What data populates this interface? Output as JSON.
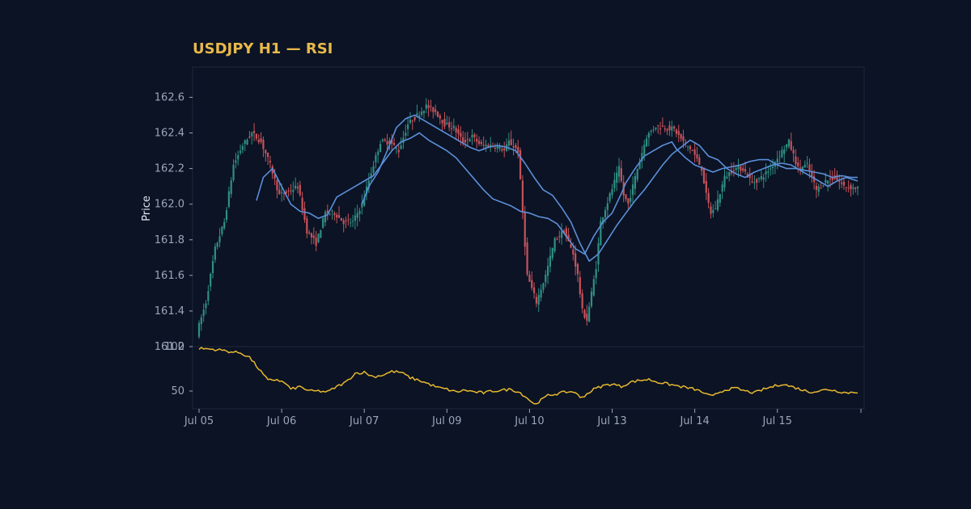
{
  "colors": {
    "background": "#0b1324",
    "title": "#e8b84a",
    "up_candle": "#2f8f83",
    "down_candle": "#c6525a",
    "moving_average": "#5b8fd9",
    "rsi_line": "#e8b830",
    "panel_border": "#1e2a3c",
    "tick_text": "#9aa6b8"
  },
  "chart_data": {
    "type": "candlestick",
    "title": "USDJPY H1 — RSI",
    "price_panel": {
      "ylabel": "Price",
      "ylim": [
        161.2,
        162.77
      ],
      "yticks": [
        "161.2",
        "161.4",
        "161.6",
        "161.8",
        "162.0",
        "162.2",
        "162.4",
        "162.6"
      ],
      "ytick_values": [
        161.2,
        161.4,
        161.6,
        161.8,
        162.0,
        162.2,
        162.4,
        162.6
      ],
      "ohlc_knots": [
        [
          0,
          161.27
        ],
        [
          1,
          161.32
        ],
        [
          4,
          161.45
        ],
        [
          8,
          161.75
        ],
        [
          12,
          161.9
        ],
        [
          16,
          162.22
        ],
        [
          20,
          162.33
        ],
        [
          24,
          162.4
        ],
        [
          28,
          162.35
        ],
        [
          32,
          162.22
        ],
        [
          36,
          162.05
        ],
        [
          40,
          162.07
        ],
        [
          44,
          162.1
        ],
        [
          48,
          161.85
        ],
        [
          52,
          161.78
        ],
        [
          56,
          161.95
        ],
        [
          60,
          161.95
        ],
        [
          64,
          161.9
        ],
        [
          68,
          161.9
        ],
        [
          72,
          162.0
        ],
        [
          76,
          162.18
        ],
        [
          80,
          162.35
        ],
        [
          84,
          162.35
        ],
        [
          88,
          162.3
        ],
        [
          92,
          162.45
        ],
        [
          96,
          162.5
        ],
        [
          100,
          162.55
        ],
        [
          104,
          162.52
        ],
        [
          108,
          162.45
        ],
        [
          112,
          162.43
        ],
        [
          116,
          162.35
        ],
        [
          120,
          162.38
        ],
        [
          124,
          162.33
        ],
        [
          128,
          162.33
        ],
        [
          132,
          162.32
        ],
        [
          134,
          162.3
        ],
        [
          136,
          162.35
        ],
        [
          140,
          162.3
        ],
        [
          144,
          161.6
        ],
        [
          148,
          161.45
        ],
        [
          152,
          161.6
        ],
        [
          156,
          161.8
        ],
        [
          160,
          161.85
        ],
        [
          164,
          161.72
        ],
        [
          166,
          161.6
        ],
        [
          168,
          161.4
        ],
        [
          170,
          161.35
        ],
        [
          174,
          161.65
        ],
        [
          176,
          161.9
        ],
        [
          180,
          162.05
        ],
        [
          184,
          162.2
        ],
        [
          186,
          162.05
        ],
        [
          188,
          162.0
        ],
        [
          190,
          162.1
        ],
        [
          192,
          162.2
        ],
        [
          196,
          162.38
        ],
        [
          200,
          162.44
        ],
        [
          204,
          162.43
        ],
        [
          208,
          162.42
        ],
        [
          212,
          162.35
        ],
        [
          216,
          162.3
        ],
        [
          220,
          162.2
        ],
        [
          222,
          162.05
        ],
        [
          224,
          161.95
        ],
        [
          226,
          161.98
        ],
        [
          230,
          162.15
        ],
        [
          234,
          162.2
        ],
        [
          238,
          162.2
        ],
        [
          242,
          162.12
        ],
        [
          246,
          162.15
        ],
        [
          250,
          162.2
        ],
        [
          254,
          162.28
        ],
        [
          258,
          162.35
        ],
        [
          262,
          162.2
        ],
        [
          266,
          162.22
        ],
        [
          270,
          162.08
        ],
        [
          274,
          162.13
        ],
        [
          278,
          162.15
        ],
        [
          282,
          162.1
        ],
        [
          287,
          162.09
        ]
      ],
      "moving_averages": [
        {
          "knots": [
            [
              25,
              162.02
            ],
            [
              28,
              162.15
            ],
            [
              32,
              162.2
            ],
            [
              36,
              162.1
            ],
            [
              40,
              162.0
            ],
            [
              44,
              161.96
            ],
            [
              48,
              161.95
            ],
            [
              52,
              161.92
            ],
            [
              56,
              161.94
            ],
            [
              60,
              162.04
            ],
            [
              64,
              162.07
            ],
            [
              68,
              162.1
            ],
            [
              72,
              162.13
            ],
            [
              76,
              162.16
            ],
            [
              80,
              162.23
            ],
            [
              84,
              162.3
            ],
            [
              88,
              162.35
            ],
            [
              92,
              162.37
            ],
            [
              96,
              162.4
            ],
            [
              100,
              162.36
            ],
            [
              104,
              162.33
            ],
            [
              108,
              162.3
            ],
            [
              112,
              162.26
            ],
            [
              116,
              162.2
            ],
            [
              120,
              162.14
            ],
            [
              124,
              162.08
            ],
            [
              128,
              162.03
            ],
            [
              132,
              162.01
            ],
            [
              136,
              161.99
            ],
            [
              140,
              161.96
            ],
            [
              144,
              161.95
            ],
            [
              148,
              161.93
            ],
            [
              152,
              161.92
            ],
            [
              156,
              161.89
            ],
            [
              160,
              161.82
            ],
            [
              164,
              161.75
            ],
            [
              168,
              161.72
            ],
            [
              172,
              161.82
            ],
            [
              176,
              161.9
            ],
            [
              180,
              161.95
            ],
            [
              184,
              162.06
            ],
            [
              186,
              162.12
            ],
            [
              190,
              162.2
            ],
            [
              194,
              162.27
            ],
            [
              198,
              162.3
            ],
            [
              202,
              162.33
            ],
            [
              206,
              162.35
            ],
            [
              208,
              162.31
            ],
            [
              212,
              162.26
            ],
            [
              216,
              162.22
            ],
            [
              220,
              162.2
            ],
            [
              224,
              162.18
            ],
            [
              228,
              162.2
            ],
            [
              232,
              162.21
            ],
            [
              236,
              162.22
            ],
            [
              240,
              162.24
            ],
            [
              244,
              162.25
            ],
            [
              248,
              162.25
            ],
            [
              252,
              162.22
            ],
            [
              256,
              162.2
            ],
            [
              260,
              162.2
            ],
            [
              264,
              162.19
            ],
            [
              268,
              162.18
            ],
            [
              272,
              162.17
            ],
            [
              276,
              162.15
            ],
            [
              280,
              162.16
            ],
            [
              284,
              162.15
            ],
            [
              287,
              162.15
            ]
          ]
        },
        {
          "knots": [
            [
              71,
              162.0
            ],
            [
              74,
              162.1
            ],
            [
              78,
              162.18
            ],
            [
              82,
              162.3
            ],
            [
              86,
              162.43
            ],
            [
              90,
              162.48
            ],
            [
              94,
              162.5
            ],
            [
              98,
              162.47
            ],
            [
              102,
              162.44
            ],
            [
              106,
              162.41
            ],
            [
              110,
              162.38
            ],
            [
              114,
              162.35
            ],
            [
              118,
              162.32
            ],
            [
              122,
              162.3
            ],
            [
              126,
              162.32
            ],
            [
              130,
              162.33
            ],
            [
              134,
              162.32
            ],
            [
              138,
              162.3
            ],
            [
              142,
              162.23
            ],
            [
              146,
              162.15
            ],
            [
              150,
              162.08
            ],
            [
              154,
              162.05
            ],
            [
              158,
              161.98
            ],
            [
              162,
              161.9
            ],
            [
              166,
              161.78
            ],
            [
              170,
              161.68
            ],
            [
              174,
              161.72
            ],
            [
              178,
              161.8
            ],
            [
              182,
              161.88
            ],
            [
              186,
              161.95
            ],
            [
              190,
              162.02
            ],
            [
              194,
              162.08
            ],
            [
              198,
              162.15
            ],
            [
              202,
              162.22
            ],
            [
              206,
              162.28
            ],
            [
              210,
              162.32
            ],
            [
              214,
              162.36
            ],
            [
              218,
              162.33
            ],
            [
              222,
              162.27
            ],
            [
              226,
              162.25
            ],
            [
              230,
              162.2
            ],
            [
              234,
              162.17
            ],
            [
              238,
              162.15
            ],
            [
              242,
              162.18
            ],
            [
              246,
              162.2
            ],
            [
              250,
              162.22
            ],
            [
              254,
              162.23
            ],
            [
              258,
              162.22
            ],
            [
              262,
              162.19
            ],
            [
              266,
              162.16
            ],
            [
              270,
              162.13
            ],
            [
              274,
              162.1
            ],
            [
              278,
              162.13
            ],
            [
              282,
              162.15
            ],
            [
              287,
              162.13
            ]
          ]
        }
      ]
    },
    "rsi_panel": {
      "ylim": [
        30,
        100
      ],
      "yticks": [
        "50",
        "100"
      ],
      "ytick_values": [
        50,
        100
      ],
      "values_knots": [
        [
          0,
          98
        ],
        [
          6,
          97
        ],
        [
          10,
          96
        ],
        [
          14,
          94
        ],
        [
          18,
          93
        ],
        [
          22,
          88
        ],
        [
          26,
          75
        ],
        [
          30,
          62
        ],
        [
          34,
          63
        ],
        [
          38,
          58
        ],
        [
          40,
          52
        ],
        [
          44,
          55
        ],
        [
          48,
          50
        ],
        [
          52,
          50
        ],
        [
          56,
          49
        ],
        [
          60,
          55
        ],
        [
          64,
          60
        ],
        [
          68,
          70
        ],
        [
          72,
          71
        ],
        [
          76,
          66
        ],
        [
          80,
          68
        ],
        [
          84,
          72
        ],
        [
          88,
          71
        ],
        [
          92,
          65
        ],
        [
          96,
          62
        ],
        [
          100,
          58
        ],
        [
          104,
          54
        ],
        [
          108,
          52
        ],
        [
          112,
          49
        ],
        [
          116,
          51
        ],
        [
          120,
          49
        ],
        [
          124,
          48
        ],
        [
          128,
          50
        ],
        [
          132,
          51
        ],
        [
          136,
          52
        ],
        [
          140,
          48
        ],
        [
          144,
          40
        ],
        [
          146,
          35
        ],
        [
          148,
          38
        ],
        [
          152,
          45
        ],
        [
          156,
          47
        ],
        [
          160,
          49
        ],
        [
          164,
          49
        ],
        [
          166,
          42
        ],
        [
          168,
          45
        ],
        [
          172,
          52
        ],
        [
          176,
          56
        ],
        [
          180,
          58
        ],
        [
          184,
          55
        ],
        [
          188,
          60
        ],
        [
          192,
          62
        ],
        [
          196,
          63
        ],
        [
          200,
          60
        ],
        [
          204,
          58
        ],
        [
          208,
          56
        ],
        [
          212,
          54
        ],
        [
          216,
          52
        ],
        [
          220,
          48
        ],
        [
          222,
          45
        ],
        [
          224,
          44
        ],
        [
          226,
          48
        ],
        [
          230,
          52
        ],
        [
          234,
          53
        ],
        [
          238,
          50
        ],
        [
          242,
          48
        ],
        [
          246,
          52
        ],
        [
          250,
          55
        ],
        [
          254,
          58
        ],
        [
          258,
          55
        ],
        [
          262,
          52
        ],
        [
          266,
          49
        ],
        [
          270,
          50
        ],
        [
          274,
          52
        ],
        [
          278,
          50
        ],
        [
          282,
          48
        ],
        [
          287,
          49
        ]
      ]
    },
    "x_axis": {
      "n_bars": 288,
      "tick_labels": [
        "Jul 05",
        "Jul 06",
        "Jul 07",
        "Jul 09",
        "Jul 10",
        "Jul 13",
        "Jul 14",
        "Jul 15"
      ],
      "tick_positions": [
        0,
        36,
        72,
        108,
        144,
        180,
        216,
        252
      ]
    }
  }
}
